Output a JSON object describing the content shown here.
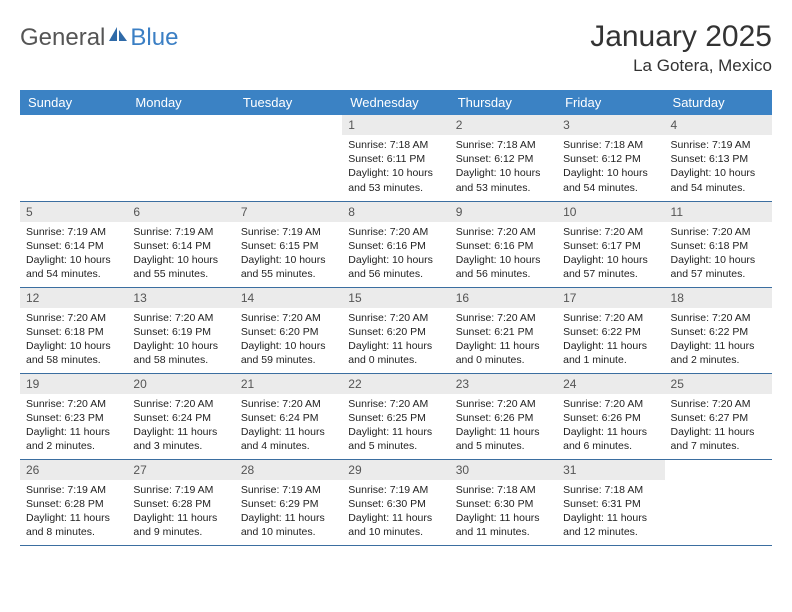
{
  "logo": {
    "text1": "General",
    "text2": "Blue"
  },
  "title": "January 2025",
  "location": "La Gotera, Mexico",
  "colors": {
    "header_bg": "#3b82c4",
    "header_text": "#ffffff",
    "daynum_bg": "#ebebeb",
    "rule": "#3b6ea0",
    "logo_blue": "#3b7fc4"
  },
  "day_names": [
    "Sunday",
    "Monday",
    "Tuesday",
    "Wednesday",
    "Thursday",
    "Friday",
    "Saturday"
  ],
  "weeks": [
    [
      {
        "n": "",
        "sr": "",
        "ss": "",
        "dl": "",
        "empty": true
      },
      {
        "n": "",
        "sr": "",
        "ss": "",
        "dl": "",
        "empty": true
      },
      {
        "n": "",
        "sr": "",
        "ss": "",
        "dl": "",
        "empty": true
      },
      {
        "n": "1",
        "sr": "7:18 AM",
        "ss": "6:11 PM",
        "dl": "10 hours and 53 minutes."
      },
      {
        "n": "2",
        "sr": "7:18 AM",
        "ss": "6:12 PM",
        "dl": "10 hours and 53 minutes."
      },
      {
        "n": "3",
        "sr": "7:18 AM",
        "ss": "6:12 PM",
        "dl": "10 hours and 54 minutes."
      },
      {
        "n": "4",
        "sr": "7:19 AM",
        "ss": "6:13 PM",
        "dl": "10 hours and 54 minutes."
      }
    ],
    [
      {
        "n": "5",
        "sr": "7:19 AM",
        "ss": "6:14 PM",
        "dl": "10 hours and 54 minutes."
      },
      {
        "n": "6",
        "sr": "7:19 AM",
        "ss": "6:14 PM",
        "dl": "10 hours and 55 minutes."
      },
      {
        "n": "7",
        "sr": "7:19 AM",
        "ss": "6:15 PM",
        "dl": "10 hours and 55 minutes."
      },
      {
        "n": "8",
        "sr": "7:20 AM",
        "ss": "6:16 PM",
        "dl": "10 hours and 56 minutes."
      },
      {
        "n": "9",
        "sr": "7:20 AM",
        "ss": "6:16 PM",
        "dl": "10 hours and 56 minutes."
      },
      {
        "n": "10",
        "sr": "7:20 AM",
        "ss": "6:17 PM",
        "dl": "10 hours and 57 minutes."
      },
      {
        "n": "11",
        "sr": "7:20 AM",
        "ss": "6:18 PM",
        "dl": "10 hours and 57 minutes."
      }
    ],
    [
      {
        "n": "12",
        "sr": "7:20 AM",
        "ss": "6:18 PM",
        "dl": "10 hours and 58 minutes."
      },
      {
        "n": "13",
        "sr": "7:20 AM",
        "ss": "6:19 PM",
        "dl": "10 hours and 58 minutes."
      },
      {
        "n": "14",
        "sr": "7:20 AM",
        "ss": "6:20 PM",
        "dl": "10 hours and 59 minutes."
      },
      {
        "n": "15",
        "sr": "7:20 AM",
        "ss": "6:20 PM",
        "dl": "11 hours and 0 minutes."
      },
      {
        "n": "16",
        "sr": "7:20 AM",
        "ss": "6:21 PM",
        "dl": "11 hours and 0 minutes."
      },
      {
        "n": "17",
        "sr": "7:20 AM",
        "ss": "6:22 PM",
        "dl": "11 hours and 1 minute."
      },
      {
        "n": "18",
        "sr": "7:20 AM",
        "ss": "6:22 PM",
        "dl": "11 hours and 2 minutes."
      }
    ],
    [
      {
        "n": "19",
        "sr": "7:20 AM",
        "ss": "6:23 PM",
        "dl": "11 hours and 2 minutes."
      },
      {
        "n": "20",
        "sr": "7:20 AM",
        "ss": "6:24 PM",
        "dl": "11 hours and 3 minutes."
      },
      {
        "n": "21",
        "sr": "7:20 AM",
        "ss": "6:24 PM",
        "dl": "11 hours and 4 minutes."
      },
      {
        "n": "22",
        "sr": "7:20 AM",
        "ss": "6:25 PM",
        "dl": "11 hours and 5 minutes."
      },
      {
        "n": "23",
        "sr": "7:20 AM",
        "ss": "6:26 PM",
        "dl": "11 hours and 5 minutes."
      },
      {
        "n": "24",
        "sr": "7:20 AM",
        "ss": "6:26 PM",
        "dl": "11 hours and 6 minutes."
      },
      {
        "n": "25",
        "sr": "7:20 AM",
        "ss": "6:27 PM",
        "dl": "11 hours and 7 minutes."
      }
    ],
    [
      {
        "n": "26",
        "sr": "7:19 AM",
        "ss": "6:28 PM",
        "dl": "11 hours and 8 minutes."
      },
      {
        "n": "27",
        "sr": "7:19 AM",
        "ss": "6:28 PM",
        "dl": "11 hours and 9 minutes."
      },
      {
        "n": "28",
        "sr": "7:19 AM",
        "ss": "6:29 PM",
        "dl": "11 hours and 10 minutes."
      },
      {
        "n": "29",
        "sr": "7:19 AM",
        "ss": "6:30 PM",
        "dl": "11 hours and 10 minutes."
      },
      {
        "n": "30",
        "sr": "7:18 AM",
        "ss": "6:30 PM",
        "dl": "11 hours and 11 minutes."
      },
      {
        "n": "31",
        "sr": "7:18 AM",
        "ss": "6:31 PM",
        "dl": "11 hours and 12 minutes."
      },
      {
        "n": "",
        "sr": "",
        "ss": "",
        "dl": "",
        "empty": true
      }
    ]
  ],
  "labels": {
    "sunrise": "Sunrise:",
    "sunset": "Sunset:",
    "daylight": "Daylight:"
  }
}
